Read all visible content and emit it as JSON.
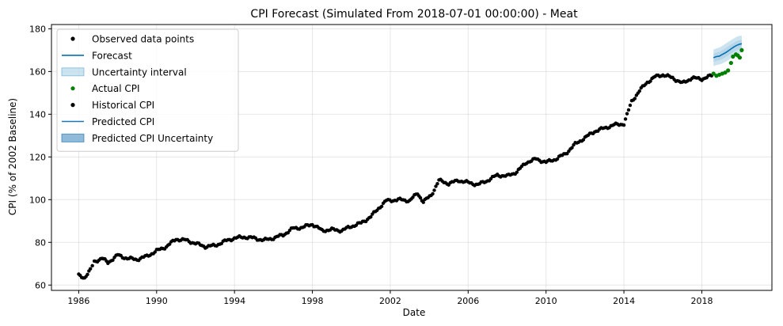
{
  "chart_data": {
    "type": "line",
    "title": "CPI Forecast (Simulated From 2018-07-01 00:00:00) - Meat",
    "xlabel": "Date",
    "ylabel": "CPI (% of 2002 Baseline)",
    "xlim": [
      1984.6,
      2021.6
    ],
    "ylim": [
      57.5,
      182
    ],
    "x_ticks": [
      1986,
      1990,
      1994,
      1998,
      2002,
      2006,
      2010,
      2014,
      2018
    ],
    "x_tick_labels": [
      "1986",
      "1990",
      "1994",
      "1998",
      "2002",
      "2006",
      "2010",
      "2014",
      "2018"
    ],
    "y_ticks": [
      60,
      80,
      100,
      120,
      140,
      160,
      180
    ],
    "y_tick_labels": [
      "60",
      "80",
      "100",
      "120",
      "140",
      "160",
      "180"
    ],
    "grid": true,
    "legend_position": "top-left",
    "legend": [
      {
        "label": "Observed data points",
        "kind": "point",
        "color": "#000000"
      },
      {
        "label": "Forecast",
        "kind": "line",
        "color": "#0072B2"
      },
      {
        "label": "Uncertainty interval",
        "kind": "band",
        "color": "#0072B2",
        "opacity": 0.2
      },
      {
        "label": "Actual CPI",
        "kind": "point",
        "color": "#008000"
      },
      {
        "label": "Historical CPI",
        "kind": "point",
        "color": "#000000"
      },
      {
        "label": "Predicted CPI",
        "kind": "line",
        "color": "#1f77b4"
      },
      {
        "label": "Predicted CPI Uncertainty",
        "kind": "band",
        "color": "#1f77b4",
        "opacity": 0.5
      }
    ],
    "historical_anchors": [
      [
        1986.0,
        64.5
      ],
      [
        1986.3,
        63.5
      ],
      [
        1986.6,
        67.0
      ],
      [
        1986.8,
        71.0
      ],
      [
        1987.2,
        72.5
      ],
      [
        1987.5,
        70.5
      ],
      [
        1988.0,
        74.0
      ],
      [
        1988.5,
        72.5
      ],
      [
        1989.0,
        72.0
      ],
      [
        1989.5,
        73.5
      ],
      [
        1990.0,
        76.0
      ],
      [
        1990.5,
        78.0
      ],
      [
        1991.0,
        81.5
      ],
      [
        1991.5,
        81.0
      ],
      [
        1992.0,
        79.5
      ],
      [
        1992.5,
        78.0
      ],
      [
        1993.0,
        78.5
      ],
      [
        1993.5,
        80.5
      ],
      [
        1994.0,
        82.0
      ],
      [
        1994.5,
        82.5
      ],
      [
        1995.0,
        82.0
      ],
      [
        1995.5,
        81.0
      ],
      [
        1996.0,
        82.0
      ],
      [
        1996.5,
        83.5
      ],
      [
        1997.0,
        86.5
      ],
      [
        1997.5,
        87.0
      ],
      [
        1998.0,
        88.5
      ],
      [
        1998.5,
        85.5
      ],
      [
        1999.0,
        86.0
      ],
      [
        1999.5,
        85.5
      ],
      [
        2000.0,
        87.5
      ],
      [
        2000.5,
        89.0
      ],
      [
        2001.0,
        92.0
      ],
      [
        2001.4,
        96.0
      ],
      [
        2001.8,
        99.5
      ],
      [
        2002.5,
        100.0
      ],
      [
        2003.0,
        99.5
      ],
      [
        2003.4,
        103.0
      ],
      [
        2003.7,
        99.0
      ],
      [
        2004.1,
        102.0
      ],
      [
        2004.5,
        109.0
      ],
      [
        2005.0,
        107.5
      ],
      [
        2005.5,
        109.0
      ],
      [
        2006.0,
        108.0
      ],
      [
        2006.5,
        107.0
      ],
      [
        2007.0,
        109.0
      ],
      [
        2007.5,
        111.5
      ],
      [
        2008.0,
        111.0
      ],
      [
        2008.5,
        113.0
      ],
      [
        2009.0,
        117.5
      ],
      [
        2009.5,
        119.0
      ],
      [
        2010.0,
        117.5
      ],
      [
        2010.5,
        119.0
      ],
      [
        2011.0,
        121.5
      ],
      [
        2011.5,
        126.0
      ],
      [
        2012.0,
        129.0
      ],
      [
        2012.5,
        132.0
      ],
      [
        2013.0,
        133.5
      ],
      [
        2013.5,
        135.0
      ],
      [
        2014.0,
        135.5
      ],
      [
        2014.4,
        146.0
      ],
      [
        2014.8,
        151.0
      ],
      [
        2015.2,
        155.0
      ],
      [
        2015.6,
        157.5
      ],
      [
        2016.0,
        158.5
      ],
      [
        2016.5,
        157.0
      ],
      [
        2017.0,
        154.5
      ],
      [
        2017.5,
        157.0
      ],
      [
        2018.0,
        156.5
      ],
      [
        2018.5,
        158.0
      ]
    ],
    "actual_cpi": [
      [
        2018.6,
        159.0
      ],
      [
        2018.75,
        158.0
      ],
      [
        2018.9,
        158.5
      ],
      [
        2019.05,
        159.0
      ],
      [
        2019.2,
        159.5
      ],
      [
        2019.35,
        160.5
      ],
      [
        2019.5,
        164.0
      ],
      [
        2019.6,
        167.0
      ],
      [
        2019.75,
        168.0
      ],
      [
        2019.85,
        167.5
      ],
      [
        2019.95,
        166.5
      ],
      [
        2020.05,
        170.0
      ]
    ],
    "predicted_cpi": [
      [
        2018.6,
        166.5
      ],
      [
        2018.75,
        167.0
      ],
      [
        2018.9,
        167.2
      ],
      [
        2019.05,
        168.0
      ],
      [
        2019.2,
        168.7
      ],
      [
        2019.35,
        169.6
      ],
      [
        2019.5,
        170.6
      ],
      [
        2019.65,
        171.5
      ],
      [
        2019.8,
        172.3
      ],
      [
        2019.95,
        172.8
      ],
      [
        2020.05,
        173.0
      ]
    ],
    "predicted_cpi_lower": [
      162.5,
      163.0,
      163.3,
      163.8,
      164.5,
      165.3,
      166.3,
      167.3,
      168.1,
      168.6,
      169.0
    ],
    "predicted_cpi_upper": [
      170.3,
      170.8,
      171.2,
      172.0,
      172.9,
      173.8,
      174.7,
      175.5,
      176.3,
      176.7,
      176.8
    ]
  }
}
